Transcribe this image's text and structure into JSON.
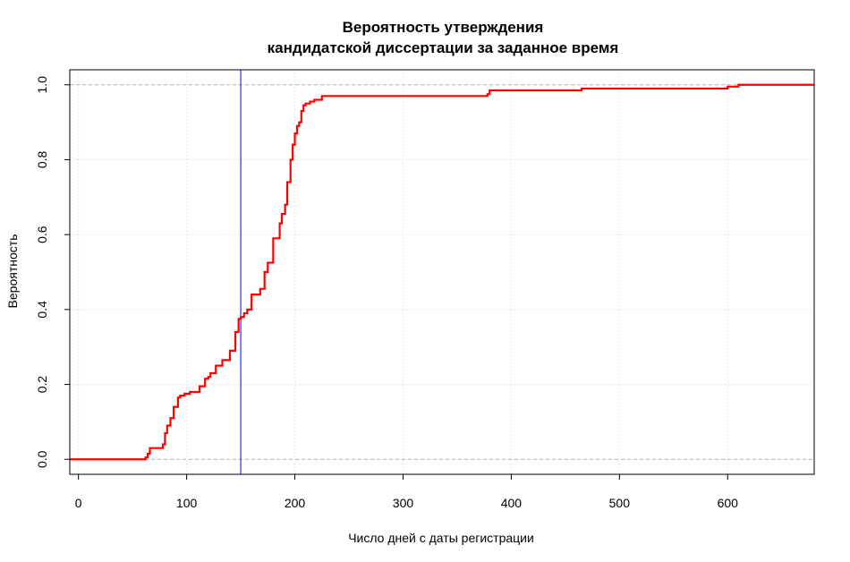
{
  "chart_data": {
    "type": "line",
    "step": true,
    "title_lines": [
      "Вероятность утверждения",
      "кандидатской диссертации за заданное время"
    ],
    "xlabel": "Число дней с даты регистрации",
    "ylabel": "Вероятность",
    "xlim": [
      -8,
      680
    ],
    "ylim": [
      -0.04,
      1.04
    ],
    "x_ticks": [
      0,
      100,
      200,
      300,
      400,
      500,
      600
    ],
    "x_tick_labels": [
      "0",
      "100",
      "200",
      "300",
      "400",
      "500",
      "600"
    ],
    "y_ticks": [
      0.0,
      0.2,
      0.4,
      0.6,
      0.8,
      1.0
    ],
    "y_tick_labels": [
      "0.0",
      "0.2",
      "0.4",
      "0.6",
      "0.8",
      "1.0"
    ],
    "grid": true,
    "reference_lines": [
      {
        "orientation": "horizontal",
        "value": 0,
        "color": "#b3b3b3",
        "style": "dashed"
      },
      {
        "orientation": "horizontal",
        "value": 1,
        "color": "#b3b3b3",
        "style": "dashed"
      },
      {
        "orientation": "vertical",
        "value": 150,
        "color": "#0000ff",
        "style": "solid"
      }
    ],
    "series": [
      {
        "color": "#ff0000",
        "x": [
          -8,
          60,
          62,
          64,
          66,
          75,
          78,
          80,
          82,
          85,
          88,
          92,
          94,
          98,
          103,
          112,
          117,
          120,
          122,
          127,
          133,
          140,
          145,
          148,
          150,
          153,
          156,
          160,
          168,
          172,
          175,
          180,
          186,
          188,
          191,
          193,
          196,
          198,
          200,
          202,
          204,
          206,
          208,
          210,
          214,
          218,
          225,
          245,
          260,
          300,
          350,
          378,
          380,
          420,
          465,
          500,
          600,
          610,
          680
        ],
        "y": [
          0.0,
          0.0,
          0.005,
          0.015,
          0.03,
          0.03,
          0.04,
          0.07,
          0.09,
          0.11,
          0.14,
          0.165,
          0.17,
          0.175,
          0.18,
          0.195,
          0.215,
          0.22,
          0.23,
          0.25,
          0.265,
          0.29,
          0.34,
          0.375,
          0.38,
          0.39,
          0.4,
          0.44,
          0.455,
          0.5,
          0.525,
          0.59,
          0.63,
          0.655,
          0.68,
          0.74,
          0.8,
          0.84,
          0.87,
          0.89,
          0.9,
          0.93,
          0.945,
          0.95,
          0.955,
          0.96,
          0.97,
          0.97,
          0.97,
          0.97,
          0.97,
          0.975,
          0.985,
          0.985,
          0.99,
          0.99,
          0.995,
          1.0,
          1.0
        ]
      }
    ]
  }
}
